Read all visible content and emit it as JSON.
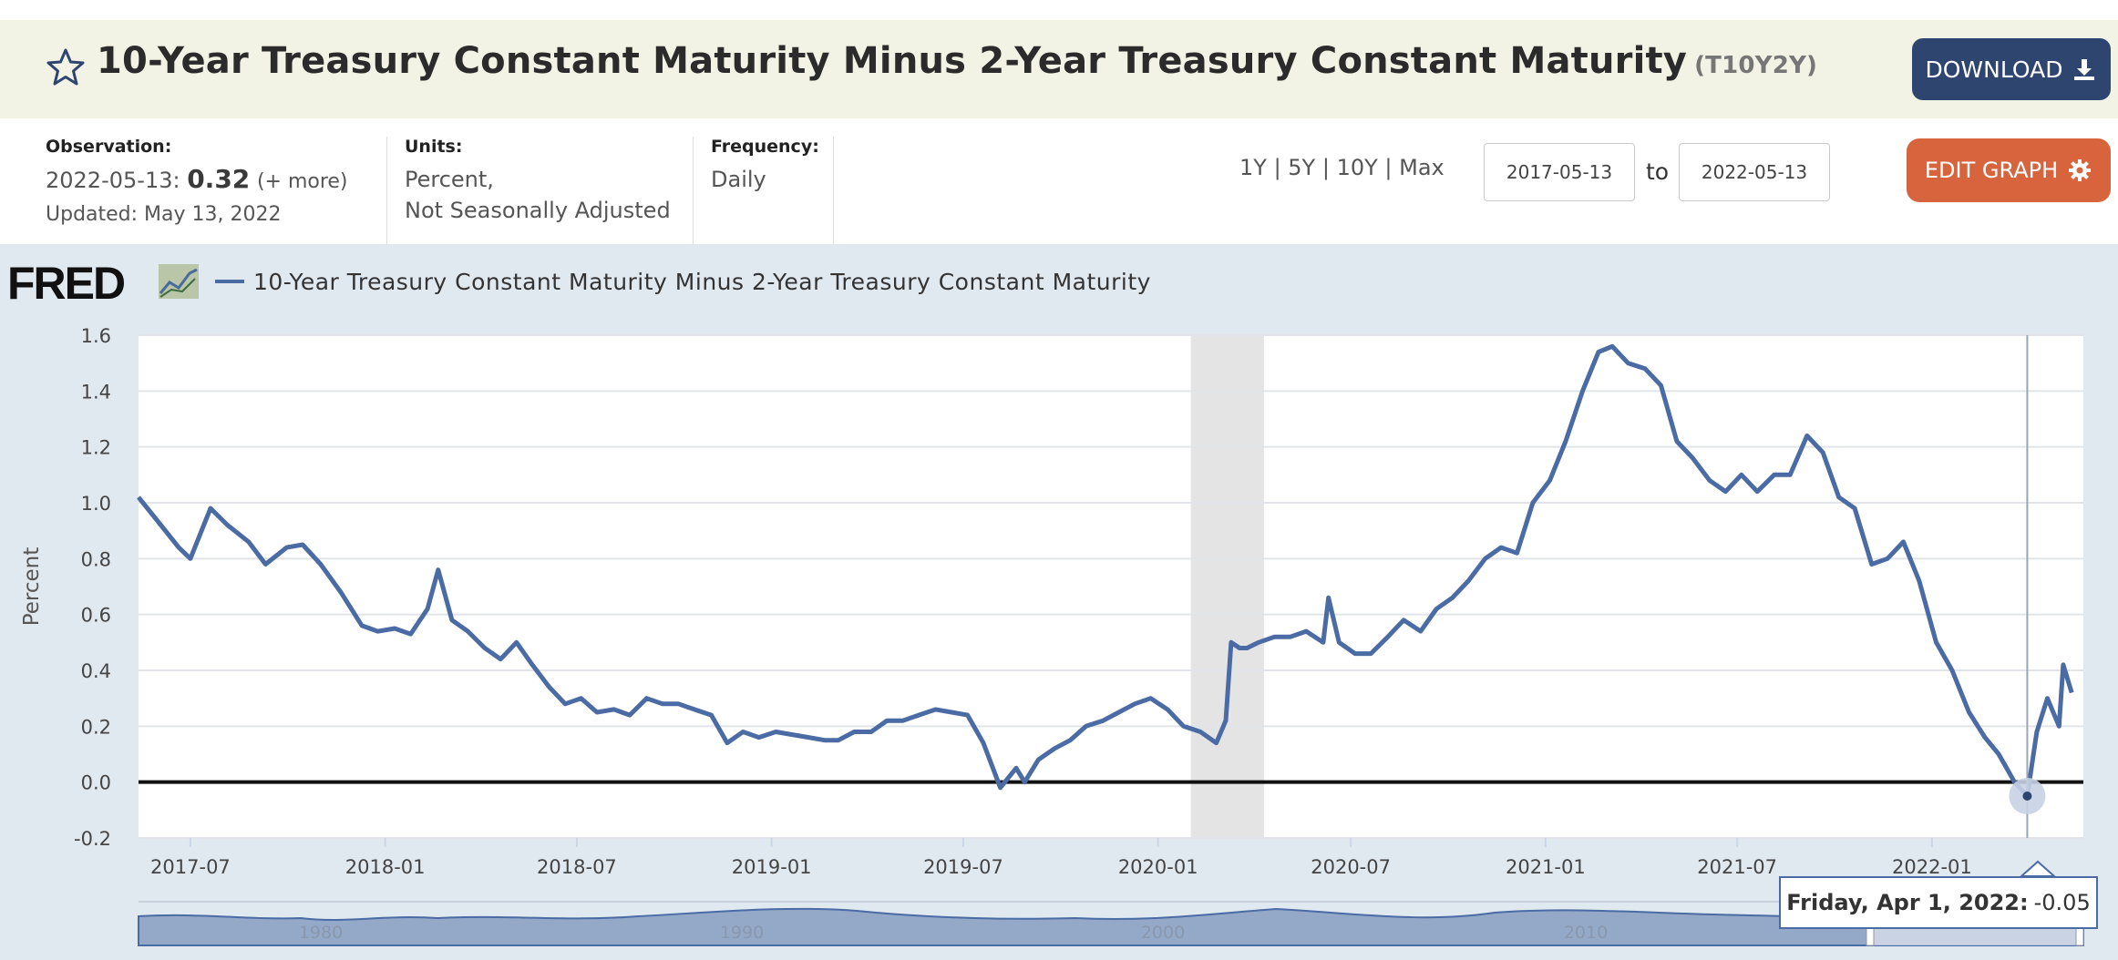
{
  "header": {
    "title": "10-Year Treasury Constant Maturity Minus 2-Year Treasury Constant Maturity",
    "series_code": "(T10Y2Y)",
    "download_label": "DOWNLOAD"
  },
  "observation": {
    "label": "Observation:",
    "date": "2022-05-13:",
    "value": "0.32",
    "more": "(+ more)",
    "updated": "Updated: May 13, 2022"
  },
  "units": {
    "label": "Units:",
    "line1": "Percent,",
    "line2": "Not Seasonally Adjusted"
  },
  "frequency": {
    "label": "Frequency:",
    "value": "Daily"
  },
  "range": {
    "links": [
      "1Y",
      "5Y",
      "10Y",
      "Max"
    ],
    "start": "2017-05-13",
    "to_label": "to",
    "end": "2022-05-13"
  },
  "edit_label": "EDIT GRAPH",
  "colors": {
    "accent": "#2e4570",
    "line": "#4a6ba4",
    "edit": "#d8643e",
    "recession": "#e4e4e4"
  },
  "tooltip": {
    "date": "Friday, Apr 1, 2022:",
    "value": "-0.05"
  },
  "chart_data": {
    "type": "line",
    "title": "10-Year Treasury Constant Maturity Minus 2-Year Treasury Constant Maturity",
    "ylabel": "Percent",
    "ylim": [
      -0.2,
      1.6
    ],
    "yticks": [
      "1.6",
      "1.4",
      "1.2",
      "1.0",
      "0.8",
      "0.6",
      "0.4",
      "0.2",
      "0.0",
      "-0.2"
    ],
    "xticks": [
      "2017-07",
      "2018-01",
      "2018-07",
      "2019-01",
      "2019-07",
      "2020-01",
      "2020-07",
      "2021-01",
      "2021-07",
      "2022-01"
    ],
    "navigator_labels": [
      "1980",
      "1990",
      "2000",
      "2010"
    ],
    "recession": [
      "2020-02",
      "2020-04"
    ],
    "logo": "FRED",
    "series": [
      {
        "name": "10-Year Treasury Constant Maturity Minus 2-Year Treasury Constant Maturity",
        "x": [
          "2017-05-13",
          "2017-06-01",
          "2017-06-20",
          "2017-07-01",
          "2017-07-20",
          "2017-08-05",
          "2017-08-25",
          "2017-09-10",
          "2017-09-30",
          "2017-10-15",
          "2017-11-01",
          "2017-11-20",
          "2017-12-10",
          "2017-12-25",
          "2018-01-10",
          "2018-01-25",
          "2018-02-10",
          "2018-02-20",
          "2018-03-05",
          "2018-03-20",
          "2018-04-05",
          "2018-04-20",
          "2018-05-05",
          "2018-05-20",
          "2018-06-05",
          "2018-06-20",
          "2018-07-05",
          "2018-07-20",
          "2018-08-05",
          "2018-08-20",
          "2018-09-05",
          "2018-09-20",
          "2018-10-05",
          "2018-10-20",
          "2018-11-05",
          "2018-11-20",
          "2018-12-05",
          "2018-12-20",
          "2019-01-05",
          "2019-01-20",
          "2019-02-05",
          "2019-02-20",
          "2019-03-05",
          "2019-03-20",
          "2019-04-05",
          "2019-04-20",
          "2019-05-05",
          "2019-05-20",
          "2019-06-05",
          "2019-06-20",
          "2019-07-05",
          "2019-07-20",
          "2019-08-05",
          "2019-08-20",
          "2019-08-28",
          "2019-09-10",
          "2019-09-25",
          "2019-10-10",
          "2019-10-25",
          "2019-11-10",
          "2019-11-25",
          "2019-12-10",
          "2019-12-25",
          "2020-01-10",
          "2020-01-25",
          "2020-02-10",
          "2020-02-25",
          "2020-03-05",
          "2020-03-10",
          "2020-03-18",
          "2020-03-25",
          "2020-04-05",
          "2020-04-20",
          "2020-05-05",
          "2020-05-20",
          "2020-06-05",
          "2020-06-10",
          "2020-06-20",
          "2020-07-05",
          "2020-07-20",
          "2020-08-05",
          "2020-08-20",
          "2020-09-05",
          "2020-09-20",
          "2020-10-05",
          "2020-10-20",
          "2020-11-05",
          "2020-11-20",
          "2020-12-05",
          "2020-12-20",
          "2021-01-05",
          "2021-01-20",
          "2021-02-05",
          "2021-02-20",
          "2021-03-05",
          "2021-03-20",
          "2021-04-05",
          "2021-04-20",
          "2021-05-05",
          "2021-05-20",
          "2021-06-05",
          "2021-06-20",
          "2021-07-05",
          "2021-07-20",
          "2021-08-05",
          "2021-08-20",
          "2021-09-05",
          "2021-09-20",
          "2021-10-05",
          "2021-10-20",
          "2021-11-05",
          "2021-11-20",
          "2021-12-05",
          "2021-12-20",
          "2022-01-05",
          "2022-01-20",
          "2022-02-05",
          "2022-02-20",
          "2022-03-05",
          "2022-03-20",
          "2022-04-01",
          "2022-04-10",
          "2022-04-20",
          "2022-05-01",
          "2022-05-05",
          "2022-05-13"
        ],
        "values": [
          1.02,
          0.93,
          0.84,
          0.8,
          0.98,
          0.92,
          0.86,
          0.78,
          0.84,
          0.85,
          0.78,
          0.68,
          0.56,
          0.54,
          0.55,
          0.53,
          0.62,
          0.76,
          0.58,
          0.54,
          0.48,
          0.44,
          0.5,
          0.42,
          0.34,
          0.28,
          0.3,
          0.25,
          0.26,
          0.24,
          0.3,
          0.28,
          0.28,
          0.26,
          0.24,
          0.14,
          0.18,
          0.16,
          0.18,
          0.17,
          0.16,
          0.15,
          0.15,
          0.18,
          0.18,
          0.22,
          0.22,
          0.24,
          0.26,
          0.25,
          0.24,
          0.14,
          -0.02,
          0.05,
          0.0,
          0.08,
          0.12,
          0.15,
          0.2,
          0.22,
          0.25,
          0.28,
          0.3,
          0.26,
          0.2,
          0.18,
          0.14,
          0.22,
          0.5,
          0.48,
          0.48,
          0.5,
          0.52,
          0.52,
          0.54,
          0.5,
          0.66,
          0.5,
          0.46,
          0.46,
          0.52,
          0.58,
          0.54,
          0.62,
          0.66,
          0.72,
          0.8,
          0.84,
          0.82,
          1.0,
          1.08,
          1.22,
          1.4,
          1.54,
          1.56,
          1.5,
          1.48,
          1.42,
          1.22,
          1.16,
          1.08,
          1.04,
          1.1,
          1.04,
          1.1,
          1.1,
          1.24,
          1.18,
          1.02,
          0.98,
          0.78,
          0.8,
          0.86,
          0.72,
          0.5,
          0.4,
          0.25,
          0.16,
          0.1,
          0.0,
          -0.05,
          0.18,
          0.3,
          0.2,
          0.42,
          0.32
        ]
      }
    ]
  }
}
